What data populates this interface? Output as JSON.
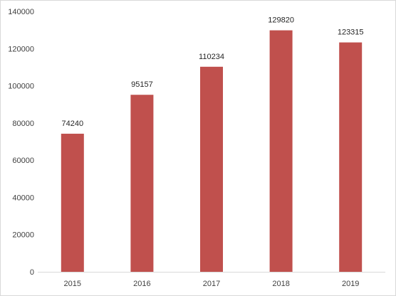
{
  "chart_data": {
    "type": "bar",
    "categories": [
      "2015",
      "2016",
      "2017",
      "2018",
      "2019"
    ],
    "values": [
      74240,
      95157,
      110234,
      129820,
      123315
    ],
    "data_labels": [
      "74240",
      "95157",
      "110234",
      "129820",
      "123315"
    ],
    "y_ticks": [
      "0",
      "20000",
      "40000",
      "60000",
      "80000",
      "100000",
      "120000",
      "140000"
    ],
    "ylim": [
      0,
      140000
    ],
    "title": "",
    "xlabel": "",
    "ylabel": "",
    "grid": false,
    "legend": "none",
    "bar_color": "#C0504D"
  }
}
